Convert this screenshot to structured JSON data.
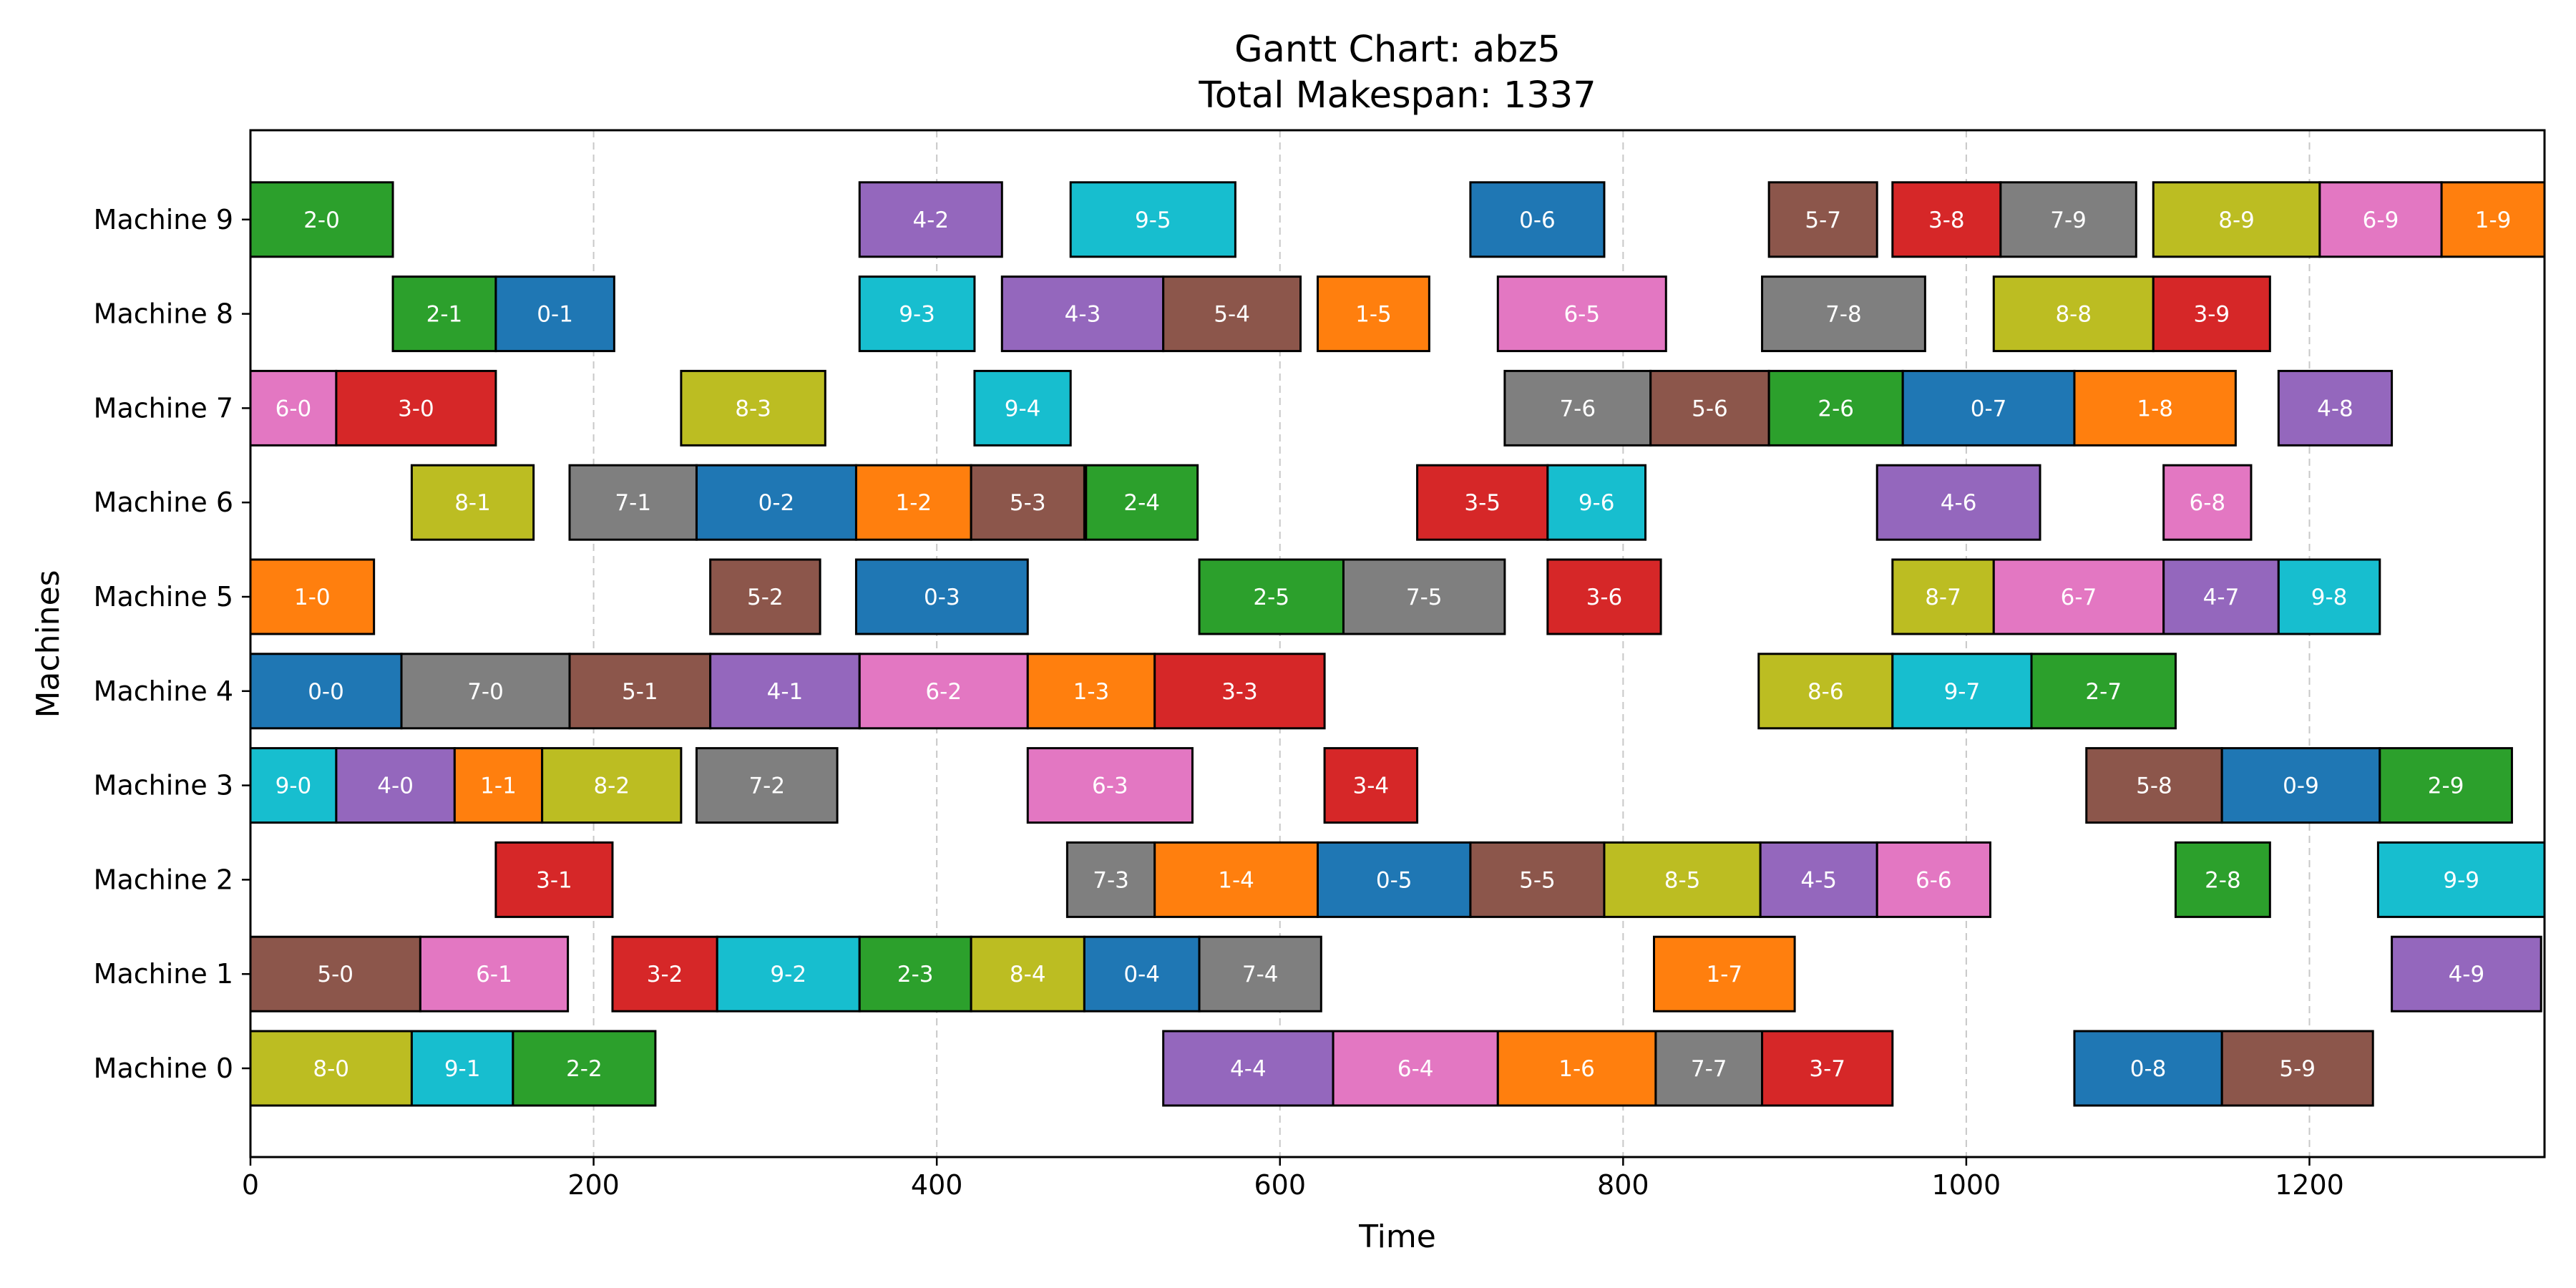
{
  "chart_data": {
    "type": "gantt",
    "title": "Gantt Chart: abz5",
    "subtitle": "Total Makespan: 1337",
    "xlabel": "Time",
    "ylabel": "Machines",
    "xlim": [
      0,
      1337
    ],
    "xticks": [
      0,
      200,
      400,
      600,
      800,
      1000,
      1200
    ],
    "grid": "x-dashed",
    "machines": [
      "Machine 0",
      "Machine 1",
      "Machine 2",
      "Machine 3",
      "Machine 4",
      "Machine 5",
      "Machine 6",
      "Machine 7",
      "Machine 8",
      "Machine 9"
    ],
    "job_colors": [
      "#1f77b4",
      "#ff7f0e",
      "#2ca02c",
      "#d62728",
      "#9467bd",
      "#8c564b",
      "#e377c2",
      "#7f7f7f",
      "#bcbd22",
      "#17becf"
    ],
    "tasks": [
      {
        "machine": 0,
        "job": 8,
        "label": "8-0",
        "start": 0,
        "end": 94
      },
      {
        "machine": 0,
        "job": 9,
        "label": "9-1",
        "start": 94,
        "end": 153
      },
      {
        "machine": 0,
        "job": 2,
        "label": "2-2",
        "start": 153,
        "end": 236
      },
      {
        "machine": 0,
        "job": 4,
        "label": "4-4",
        "start": 532,
        "end": 631
      },
      {
        "machine": 0,
        "job": 6,
        "label": "6-4",
        "start": 631,
        "end": 727
      },
      {
        "machine": 0,
        "job": 1,
        "label": "1-6",
        "start": 727,
        "end": 819
      },
      {
        "machine": 0,
        "job": 7,
        "label": "7-7",
        "start": 819,
        "end": 881
      },
      {
        "machine": 0,
        "job": 3,
        "label": "3-7",
        "start": 881,
        "end": 957
      },
      {
        "machine": 0,
        "job": 0,
        "label": "0-8",
        "start": 1063,
        "end": 1149
      },
      {
        "machine": 0,
        "job": 5,
        "label": "5-9",
        "start": 1149,
        "end": 1237
      },
      {
        "machine": 1,
        "job": 5,
        "label": "5-0",
        "start": 0,
        "end": 99
      },
      {
        "machine": 1,
        "job": 6,
        "label": "6-1",
        "start": 99,
        "end": 185
      },
      {
        "machine": 1,
        "job": 3,
        "label": "3-2",
        "start": 211,
        "end": 272
      },
      {
        "machine": 1,
        "job": 9,
        "label": "9-2",
        "start": 272,
        "end": 355
      },
      {
        "machine": 1,
        "job": 2,
        "label": "2-3",
        "start": 355,
        "end": 420
      },
      {
        "machine": 1,
        "job": 8,
        "label": "8-4",
        "start": 420,
        "end": 486
      },
      {
        "machine": 1,
        "job": 0,
        "label": "0-4",
        "start": 486,
        "end": 553
      },
      {
        "machine": 1,
        "job": 7,
        "label": "7-4",
        "start": 553,
        "end": 624
      },
      {
        "machine": 1,
        "job": 1,
        "label": "1-7",
        "start": 818,
        "end": 900
      },
      {
        "machine": 1,
        "job": 4,
        "label": "4-9",
        "start": 1248,
        "end": 1335
      },
      {
        "machine": 2,
        "job": 3,
        "label": "3-1",
        "start": 143,
        "end": 211
      },
      {
        "machine": 2,
        "job": 7,
        "label": "7-3",
        "start": 476,
        "end": 527
      },
      {
        "machine": 2,
        "job": 1,
        "label": "1-4",
        "start": 527,
        "end": 622
      },
      {
        "machine": 2,
        "job": 0,
        "label": "0-5",
        "start": 622,
        "end": 711
      },
      {
        "machine": 2,
        "job": 5,
        "label": "5-5",
        "start": 711,
        "end": 789
      },
      {
        "machine": 2,
        "job": 8,
        "label": "8-5",
        "start": 789,
        "end": 880
      },
      {
        "machine": 2,
        "job": 4,
        "label": "4-5",
        "start": 880,
        "end": 948
      },
      {
        "machine": 2,
        "job": 6,
        "label": "6-6",
        "start": 948,
        "end": 1014
      },
      {
        "machine": 2,
        "job": 2,
        "label": "2-8",
        "start": 1122,
        "end": 1177
      },
      {
        "machine": 2,
        "job": 9,
        "label": "9-9",
        "start": 1240,
        "end": 1337
      },
      {
        "machine": 3,
        "job": 9,
        "label": "9-0",
        "start": 0,
        "end": 50
      },
      {
        "machine": 3,
        "job": 4,
        "label": "4-0",
        "start": 50,
        "end": 119
      },
      {
        "machine": 3,
        "job": 1,
        "label": "1-1",
        "start": 119,
        "end": 170
      },
      {
        "machine": 3,
        "job": 8,
        "label": "8-2",
        "start": 170,
        "end": 251
      },
      {
        "machine": 3,
        "job": 7,
        "label": "7-2",
        "start": 260,
        "end": 342
      },
      {
        "machine": 3,
        "job": 6,
        "label": "6-3",
        "start": 453,
        "end": 549
      },
      {
        "machine": 3,
        "job": 3,
        "label": "3-4",
        "start": 626,
        "end": 680
      },
      {
        "machine": 3,
        "job": 5,
        "label": "5-8",
        "start": 1070,
        "end": 1149
      },
      {
        "machine": 3,
        "job": 0,
        "label": "0-9",
        "start": 1149,
        "end": 1241
      },
      {
        "machine": 3,
        "job": 2,
        "label": "2-9",
        "start": 1241,
        "end": 1318
      },
      {
        "machine": 4,
        "job": 0,
        "label": "0-0",
        "start": 0,
        "end": 88
      },
      {
        "machine": 4,
        "job": 7,
        "label": "7-0",
        "start": 88,
        "end": 186
      },
      {
        "machine": 4,
        "job": 5,
        "label": "5-1",
        "start": 186,
        "end": 268
      },
      {
        "machine": 4,
        "job": 4,
        "label": "4-1",
        "start": 268,
        "end": 355
      },
      {
        "machine": 4,
        "job": 6,
        "label": "6-2",
        "start": 355,
        "end": 453
      },
      {
        "machine": 4,
        "job": 1,
        "label": "1-3",
        "start": 453,
        "end": 527
      },
      {
        "machine": 4,
        "job": 3,
        "label": "3-3",
        "start": 527,
        "end": 626
      },
      {
        "machine": 4,
        "job": 8,
        "label": "8-6",
        "start": 879,
        "end": 957
      },
      {
        "machine": 4,
        "job": 9,
        "label": "9-7",
        "start": 957,
        "end": 1038
      },
      {
        "machine": 4,
        "job": 2,
        "label": "2-7",
        "start": 1038,
        "end": 1122
      },
      {
        "machine": 5,
        "job": 1,
        "label": "1-0",
        "start": 0,
        "end": 72
      },
      {
        "machine": 5,
        "job": 5,
        "label": "5-2",
        "start": 268,
        "end": 332
      },
      {
        "machine": 5,
        "job": 0,
        "label": "0-3",
        "start": 353,
        "end": 453
      },
      {
        "machine": 5,
        "job": 2,
        "label": "2-5",
        "start": 553,
        "end": 637
      },
      {
        "machine": 5,
        "job": 7,
        "label": "7-5",
        "start": 637,
        "end": 731
      },
      {
        "machine": 5,
        "job": 3,
        "label": "3-6",
        "start": 756,
        "end": 822
      },
      {
        "machine": 5,
        "job": 8,
        "label": "8-7",
        "start": 957,
        "end": 1016
      },
      {
        "machine": 5,
        "job": 6,
        "label": "6-7",
        "start": 1016,
        "end": 1115
      },
      {
        "machine": 5,
        "job": 4,
        "label": "4-7",
        "start": 1115,
        "end": 1182
      },
      {
        "machine": 5,
        "job": 9,
        "label": "9-8",
        "start": 1182,
        "end": 1241
      },
      {
        "machine": 6,
        "job": 8,
        "label": "8-1",
        "start": 94,
        "end": 165
      },
      {
        "machine": 6,
        "job": 7,
        "label": "7-1",
        "start": 186,
        "end": 260
      },
      {
        "machine": 6,
        "job": 0,
        "label": "0-2",
        "start": 260,
        "end": 353
      },
      {
        "machine": 6,
        "job": 1,
        "label": "1-2",
        "start": 353,
        "end": 420
      },
      {
        "machine": 6,
        "job": 5,
        "label": "5-3",
        "start": 420,
        "end": 486
      },
      {
        "machine": 6,
        "job": 2,
        "label": "2-4",
        "start": 487,
        "end": 552
      },
      {
        "machine": 6,
        "job": 3,
        "label": "3-5",
        "start": 680,
        "end": 756
      },
      {
        "machine": 6,
        "job": 9,
        "label": "9-6",
        "start": 756,
        "end": 813
      },
      {
        "machine": 6,
        "job": 4,
        "label": "4-6",
        "start": 948,
        "end": 1043
      },
      {
        "machine": 6,
        "job": 6,
        "label": "6-8",
        "start": 1115,
        "end": 1166
      },
      {
        "machine": 7,
        "job": 6,
        "label": "6-0",
        "start": 0,
        "end": 50
      },
      {
        "machine": 7,
        "job": 3,
        "label": "3-0",
        "start": 50,
        "end": 143
      },
      {
        "machine": 7,
        "job": 8,
        "label": "8-3",
        "start": 251,
        "end": 335
      },
      {
        "machine": 7,
        "job": 9,
        "label": "9-4",
        "start": 422,
        "end": 478
      },
      {
        "machine": 7,
        "job": 7,
        "label": "7-6",
        "start": 731,
        "end": 816
      },
      {
        "machine": 7,
        "job": 5,
        "label": "5-6",
        "start": 816,
        "end": 885
      },
      {
        "machine": 7,
        "job": 2,
        "label": "2-6",
        "start": 885,
        "end": 963
      },
      {
        "machine": 7,
        "job": 0,
        "label": "0-7",
        "start": 963,
        "end": 1063
      },
      {
        "machine": 7,
        "job": 1,
        "label": "1-8",
        "start": 1063,
        "end": 1157
      },
      {
        "machine": 7,
        "job": 4,
        "label": "4-8",
        "start": 1182,
        "end": 1248
      },
      {
        "machine": 8,
        "job": 2,
        "label": "2-1",
        "start": 83,
        "end": 143
      },
      {
        "machine": 8,
        "job": 0,
        "label": "0-1",
        "start": 143,
        "end": 212
      },
      {
        "machine": 8,
        "job": 9,
        "label": "9-3",
        "start": 355,
        "end": 422
      },
      {
        "machine": 8,
        "job": 4,
        "label": "4-3",
        "start": 438,
        "end": 532
      },
      {
        "machine": 8,
        "job": 5,
        "label": "5-4",
        "start": 532,
        "end": 612
      },
      {
        "machine": 8,
        "job": 1,
        "label": "1-5",
        "start": 622,
        "end": 687
      },
      {
        "machine": 8,
        "job": 6,
        "label": "6-5",
        "start": 727,
        "end": 825
      },
      {
        "machine": 8,
        "job": 7,
        "label": "7-8",
        "start": 881,
        "end": 976
      },
      {
        "machine": 8,
        "job": 8,
        "label": "8-8",
        "start": 1016,
        "end": 1109
      },
      {
        "machine": 8,
        "job": 3,
        "label": "3-9",
        "start": 1109,
        "end": 1177
      },
      {
        "machine": 9,
        "job": 2,
        "label": "2-0",
        "start": 0,
        "end": 83
      },
      {
        "machine": 9,
        "job": 4,
        "label": "4-2",
        "start": 355,
        "end": 438
      },
      {
        "machine": 9,
        "job": 9,
        "label": "9-5",
        "start": 478,
        "end": 574
      },
      {
        "machine": 9,
        "job": 0,
        "label": "0-6",
        "start": 711,
        "end": 789
      },
      {
        "machine": 9,
        "job": 5,
        "label": "5-7",
        "start": 885,
        "end": 948
      },
      {
        "machine": 9,
        "job": 3,
        "label": "3-8",
        "start": 957,
        "end": 1020
      },
      {
        "machine": 9,
        "job": 7,
        "label": "7-9",
        "start": 1020,
        "end": 1099
      },
      {
        "machine": 9,
        "job": 8,
        "label": "8-9",
        "start": 1109,
        "end": 1206
      },
      {
        "machine": 9,
        "job": 6,
        "label": "6-9",
        "start": 1206,
        "end": 1277
      },
      {
        "machine": 9,
        "job": 1,
        "label": "1-9",
        "start": 1277,
        "end": 1337
      }
    ]
  }
}
